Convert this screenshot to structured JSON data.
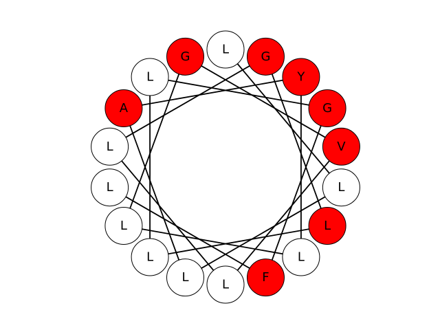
{
  "diagram": {
    "type": "helical-wheel",
    "residues": [
      {
        "letter": "L",
        "highlighted": false
      },
      {
        "letter": "G",
        "highlighted": true
      },
      {
        "letter": "Y",
        "highlighted": true
      },
      {
        "letter": "G",
        "highlighted": true
      },
      {
        "letter": "V",
        "highlighted": true
      },
      {
        "letter": "L",
        "highlighted": false
      },
      {
        "letter": "L",
        "highlighted": true
      },
      {
        "letter": "L",
        "highlighted": false
      },
      {
        "letter": "F",
        "highlighted": true
      },
      {
        "letter": "L",
        "highlighted": false
      },
      {
        "letter": "L",
        "highlighted": false
      },
      {
        "letter": "L",
        "highlighted": false
      },
      {
        "letter": "L",
        "highlighted": false
      },
      {
        "letter": "L",
        "highlighted": false
      },
      {
        "letter": "L",
        "highlighted": false
      },
      {
        "letter": "A",
        "highlighted": true
      },
      {
        "letter": "L",
        "highlighted": false
      },
      {
        "letter": "G",
        "highlighted": true
      }
    ],
    "colors": {
      "highlighted": "#ff0000",
      "normal": "#ffffff",
      "outline": "#000000",
      "bond": "#000000"
    }
  }
}
